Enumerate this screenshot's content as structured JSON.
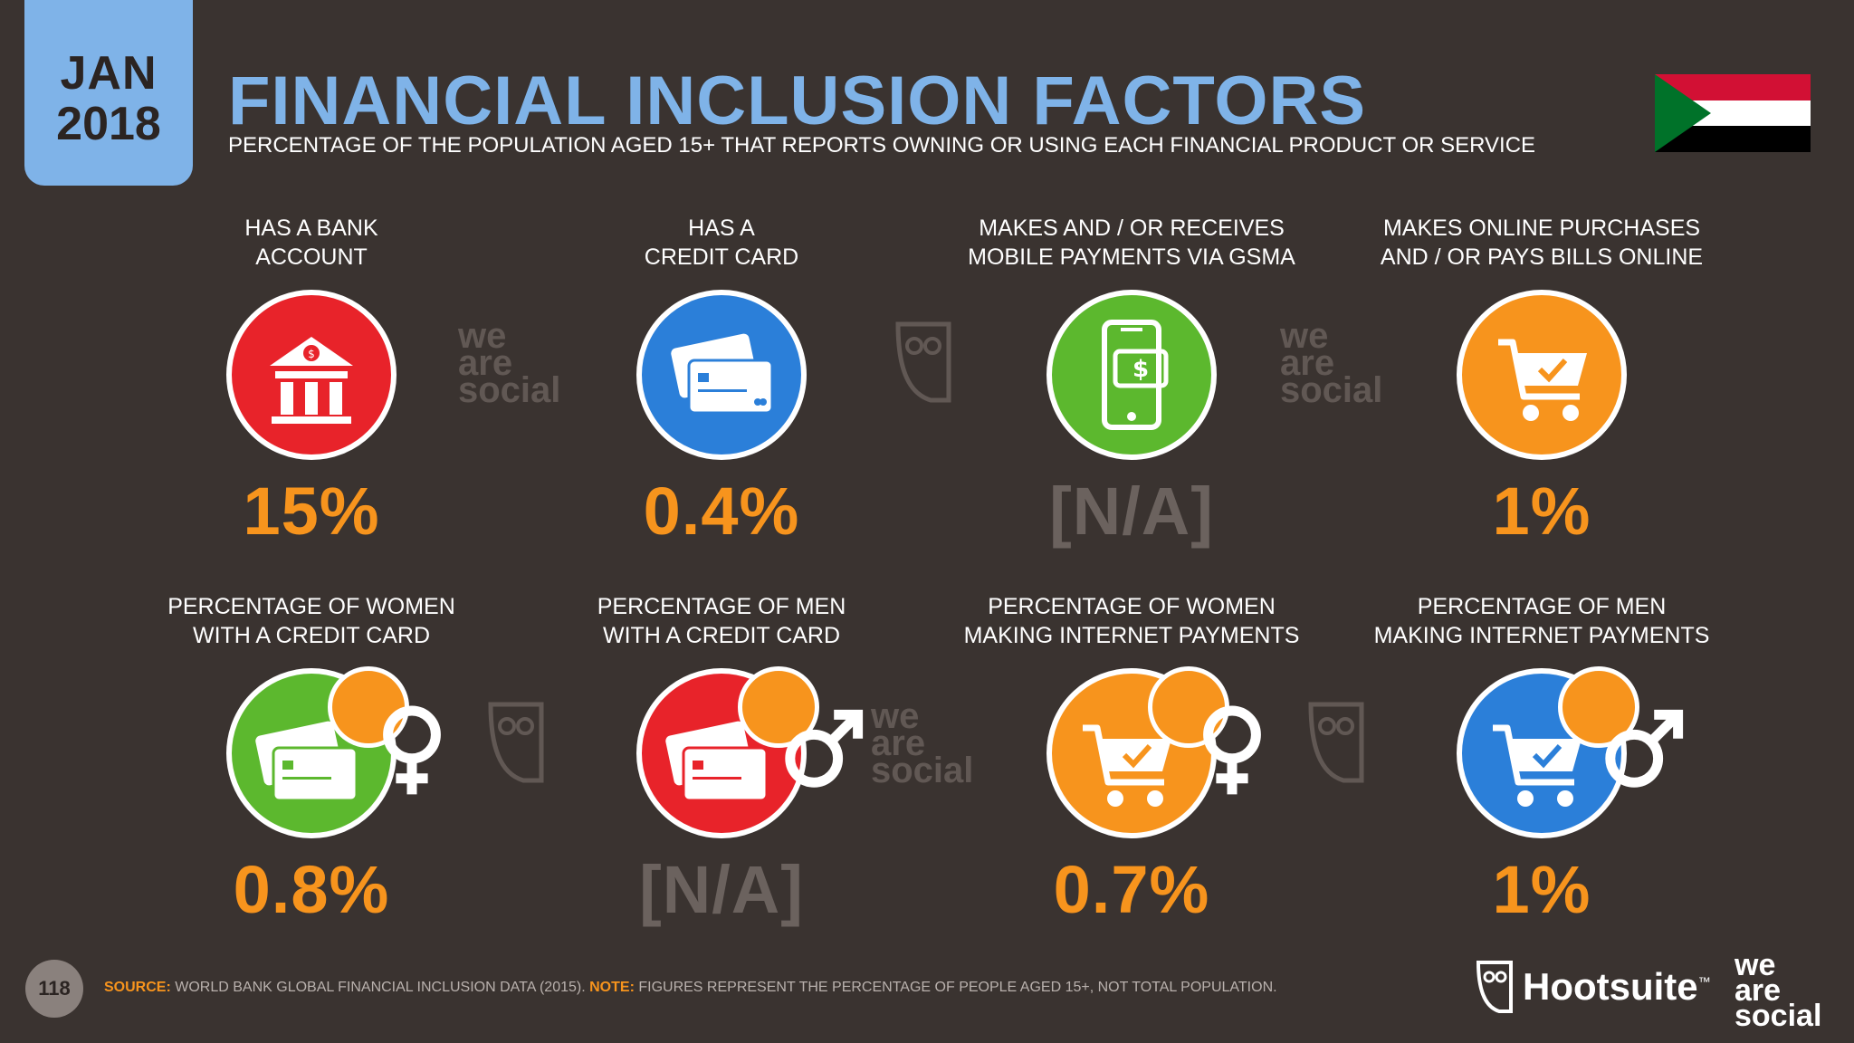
{
  "header": {
    "date_month": "JAN",
    "date_year": "2018",
    "title": "FINANCIAL INCLUSION FACTORS",
    "subtitle": "PERCENTAGE OF THE POPULATION AGED 15+ THAT REPORTS OWNING OR USING EACH FINANCIAL PRODUCT OR SERVICE"
  },
  "flag": {
    "icon": "sudan-flag-icon",
    "colors": [
      "#d21034",
      "#ffffff",
      "#000000",
      "#007229"
    ]
  },
  "items": [
    {
      "label1": "HAS A BANK",
      "label2": "ACCOUNT",
      "value": "15%",
      "icon": "bank-icon",
      "color": "#e8232a"
    },
    {
      "label1": "HAS A",
      "label2": "CREDIT CARD",
      "value": "0.4%",
      "icon": "credit-card-icon",
      "color": "#2b7fd9"
    },
    {
      "label1": "MAKES AND / OR RECEIVES",
      "label2": "MOBILE PAYMENTS VIA GSMA",
      "value": "[N/A]",
      "icon": "mobile-payment-icon",
      "color": "#5cb82e"
    },
    {
      "label1": "MAKES ONLINE PURCHASES",
      "label2": "AND / OR PAYS BILLS ONLINE",
      "value": "1%",
      "icon": "shopping-cart-icon",
      "color": "#f7941d"
    },
    {
      "label1": "PERCENTAGE OF WOMEN",
      "label2": "WITH A CREDIT CARD",
      "value": "0.8%",
      "icon": "credit-card-female-icon",
      "color": "#5cb82e"
    },
    {
      "label1": "PERCENTAGE OF MEN",
      "label2": "WITH A CREDIT CARD",
      "value": "[N/A]",
      "icon": "credit-card-male-icon",
      "color": "#e8232a"
    },
    {
      "label1": "PERCENTAGE OF WOMEN",
      "label2": "MAKING INTERNET PAYMENTS",
      "value": "0.7%",
      "icon": "shopping-cart-female-icon",
      "color": "#f7941d"
    },
    {
      "label1": "PERCENTAGE OF MEN",
      "label2": "MAKING INTERNET PAYMENTS",
      "value": "1%",
      "icon": "shopping-cart-male-icon",
      "color": "#2b7fd9"
    }
  ],
  "watermark": {
    "line1": "we",
    "line2": "are",
    "line3": "social"
  },
  "footer": {
    "page_number": "118",
    "source_key": "SOURCE:",
    "source_text": " WORLD BANK GLOBAL FINANCIAL INCLUSION DATA (2015). ",
    "note_key": "NOTE:",
    "note_text": " FIGURES REPRESENT THE PERCENTAGE OF PEOPLE AGED 15+, NOT TOTAL POPULATION.",
    "brand_hootsuite": "Hootsuite",
    "brand_tm": "™",
    "brand_was_1": "we",
    "brand_was_2": "are",
    "brand_was_3": "social"
  }
}
